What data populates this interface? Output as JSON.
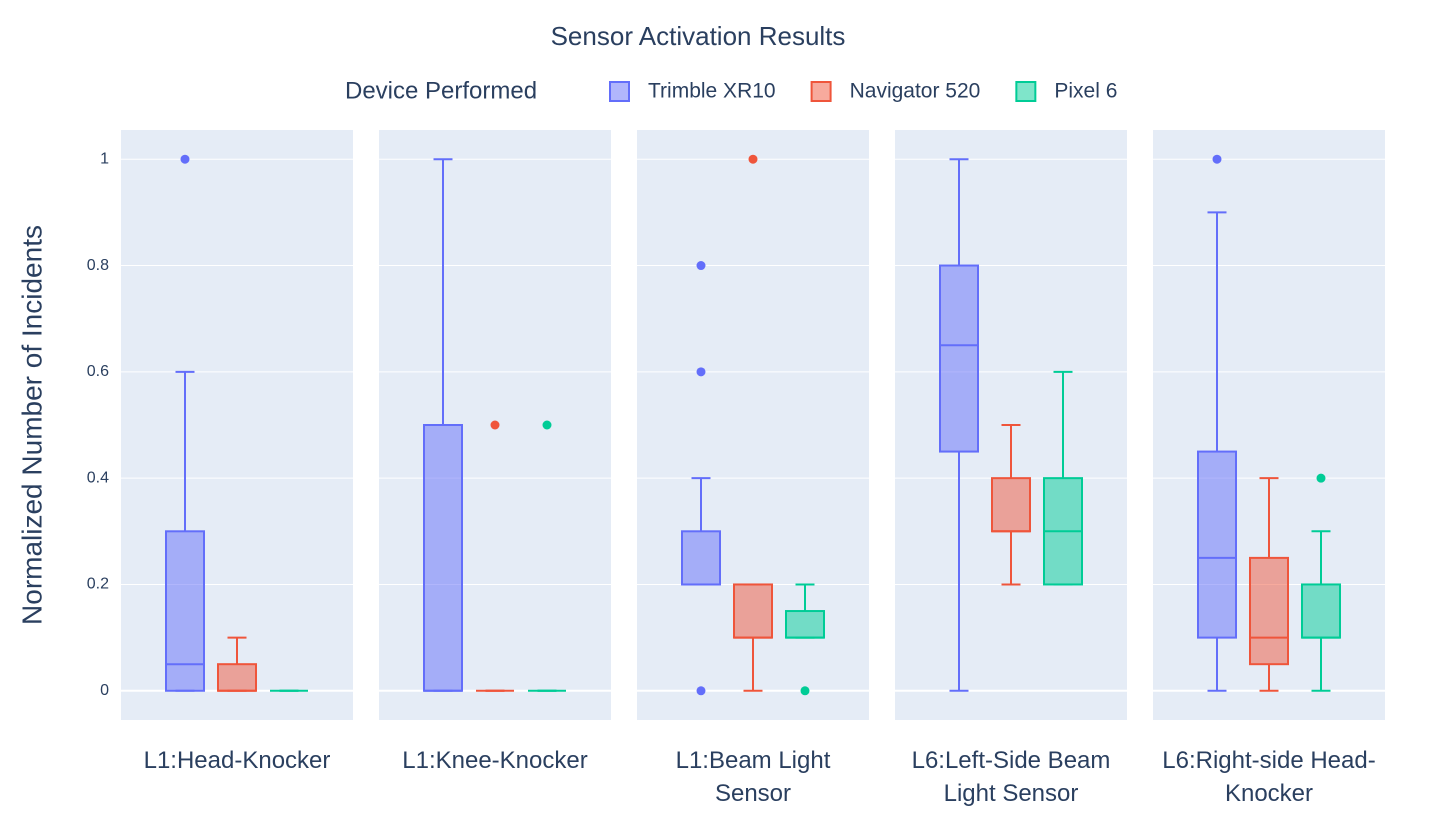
{
  "chart_data": {
    "type": "box",
    "title": "Sensor Activation Results",
    "legend_title": "Device Performed",
    "legend_position": "top",
    "y_label": "Normalized Number of Incidents",
    "categories": [
      "L1:Head-Knocker",
      "L1:Knee-Knocker",
      "L1:Beam Light Sensor",
      "L6:Left-Side Beam Light Sensor",
      "L6:Right-side Head-Knocker"
    ],
    "ylim": [
      -0.055,
      1.055
    ],
    "yticks": [
      0,
      0.2,
      0.4,
      0.6,
      0.8,
      1
    ],
    "grid": true,
    "series": [
      {
        "name": "Trimble XR10",
        "color": "#636efa",
        "min": [
          0,
          0,
          0.2,
          0,
          0
        ],
        "q1": [
          0,
          0,
          0.2,
          0.45,
          0.1
        ],
        "median": [
          0.05,
          0,
          0.2,
          0.65,
          0.25
        ],
        "q3": [
          0.3,
          0.5,
          0.3,
          0.8,
          0.45
        ],
        "max": [
          0.6,
          1,
          0.4,
          1,
          0.9
        ],
        "outliers": [
          [
            1
          ],
          [],
          [
            0,
            0.6,
            0.8
          ],
          [],
          [
            1
          ]
        ]
      },
      {
        "name": "Navigator 520",
        "color": "#ef553b",
        "min": [
          0,
          0,
          0,
          0.2,
          0
        ],
        "q1": [
          0,
          0,
          0.1,
          0.3,
          0.05
        ],
        "median": [
          0,
          0,
          0.1,
          0.3,
          0.1
        ],
        "q3": [
          0.05,
          0,
          0.2,
          0.4,
          0.25
        ],
        "max": [
          0.1,
          0,
          0.2,
          0.5,
          0.4
        ],
        "outliers": [
          [],
          [
            0.5
          ],
          [
            1
          ],
          [],
          []
        ]
      },
      {
        "name": "Pixel 6",
        "color": "#00cc96",
        "min": [
          0,
          0,
          0.1,
          0.2,
          0
        ],
        "q1": [
          0,
          0,
          0.1,
          0.2,
          0.1
        ],
        "median": [
          0,
          0,
          0.1,
          0.3,
          0.1
        ],
        "q3": [
          0,
          0,
          0.15,
          0.4,
          0.2
        ],
        "max": [
          0,
          0,
          0.2,
          0.6,
          0.3
        ],
        "outliers": [
          [],
          [
            0.5
          ],
          [
            0
          ],
          [],
          [
            0.4
          ]
        ]
      }
    ]
  }
}
